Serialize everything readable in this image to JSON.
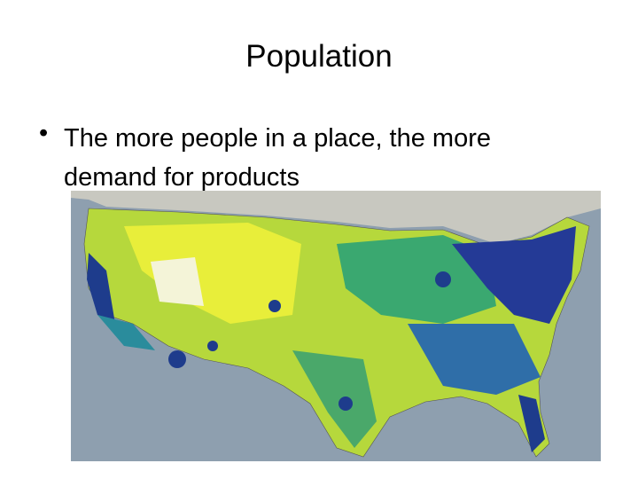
{
  "slide": {
    "title": "Population",
    "bullets": [
      {
        "text": "The more people in a place, the more demand for products"
      }
    ]
  }
}
